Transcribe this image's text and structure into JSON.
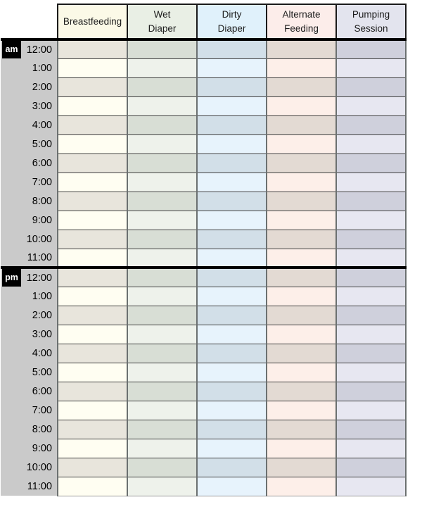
{
  "columns": [
    {
      "id": "breastfeeding",
      "label": "Breastfeeding",
      "header_bg": "#fbf9e7",
      "row_dark_bg": "#e8e5dc",
      "row_light_bg": "#fffef2"
    },
    {
      "id": "wet-diaper",
      "label": "Wet\nDiaper",
      "header_bg": "#e9efe5",
      "row_dark_bg": "#d8ded5",
      "row_light_bg": "#eef2eb"
    },
    {
      "id": "dirty-diaper",
      "label": "Dirty\nDiaper",
      "header_bg": "#e0f1fb",
      "row_dark_bg": "#d2dfe8",
      "row_light_bg": "#e7f3fc"
    },
    {
      "id": "alternate-feeding",
      "label": "Alternate\nFeeding",
      "header_bg": "#fcedea",
      "row_dark_bg": "#e3dad3",
      "row_light_bg": "#fdefe9"
    },
    {
      "id": "pumping-session",
      "label": "Pumping\nSession",
      "header_bg": "#e3e4ee",
      "row_dark_bg": "#cfd0dc",
      "row_light_bg": "#e7e7f1"
    }
  ],
  "periods": [
    {
      "label": "am",
      "times": [
        "12:00",
        "1:00",
        "2:00",
        "3:00",
        "4:00",
        "5:00",
        "6:00",
        "7:00",
        "8:00",
        "9:00",
        "10:00",
        "11:00"
      ]
    },
    {
      "label": "pm",
      "times": [
        "12:00",
        "1:00",
        "2:00",
        "3:00",
        "4:00",
        "5:00",
        "6:00",
        "7:00",
        "8:00",
        "9:00",
        "10:00",
        "11:00"
      ]
    }
  ],
  "colors": {
    "time_column_bg": "#cacaca",
    "badge_bg": "#000000",
    "badge_text": "#ffffff",
    "grid_vertical": "#6b7070",
    "grid_horizontal": "#414141",
    "divider": "#000000",
    "header_border": "#1a1a1a"
  }
}
